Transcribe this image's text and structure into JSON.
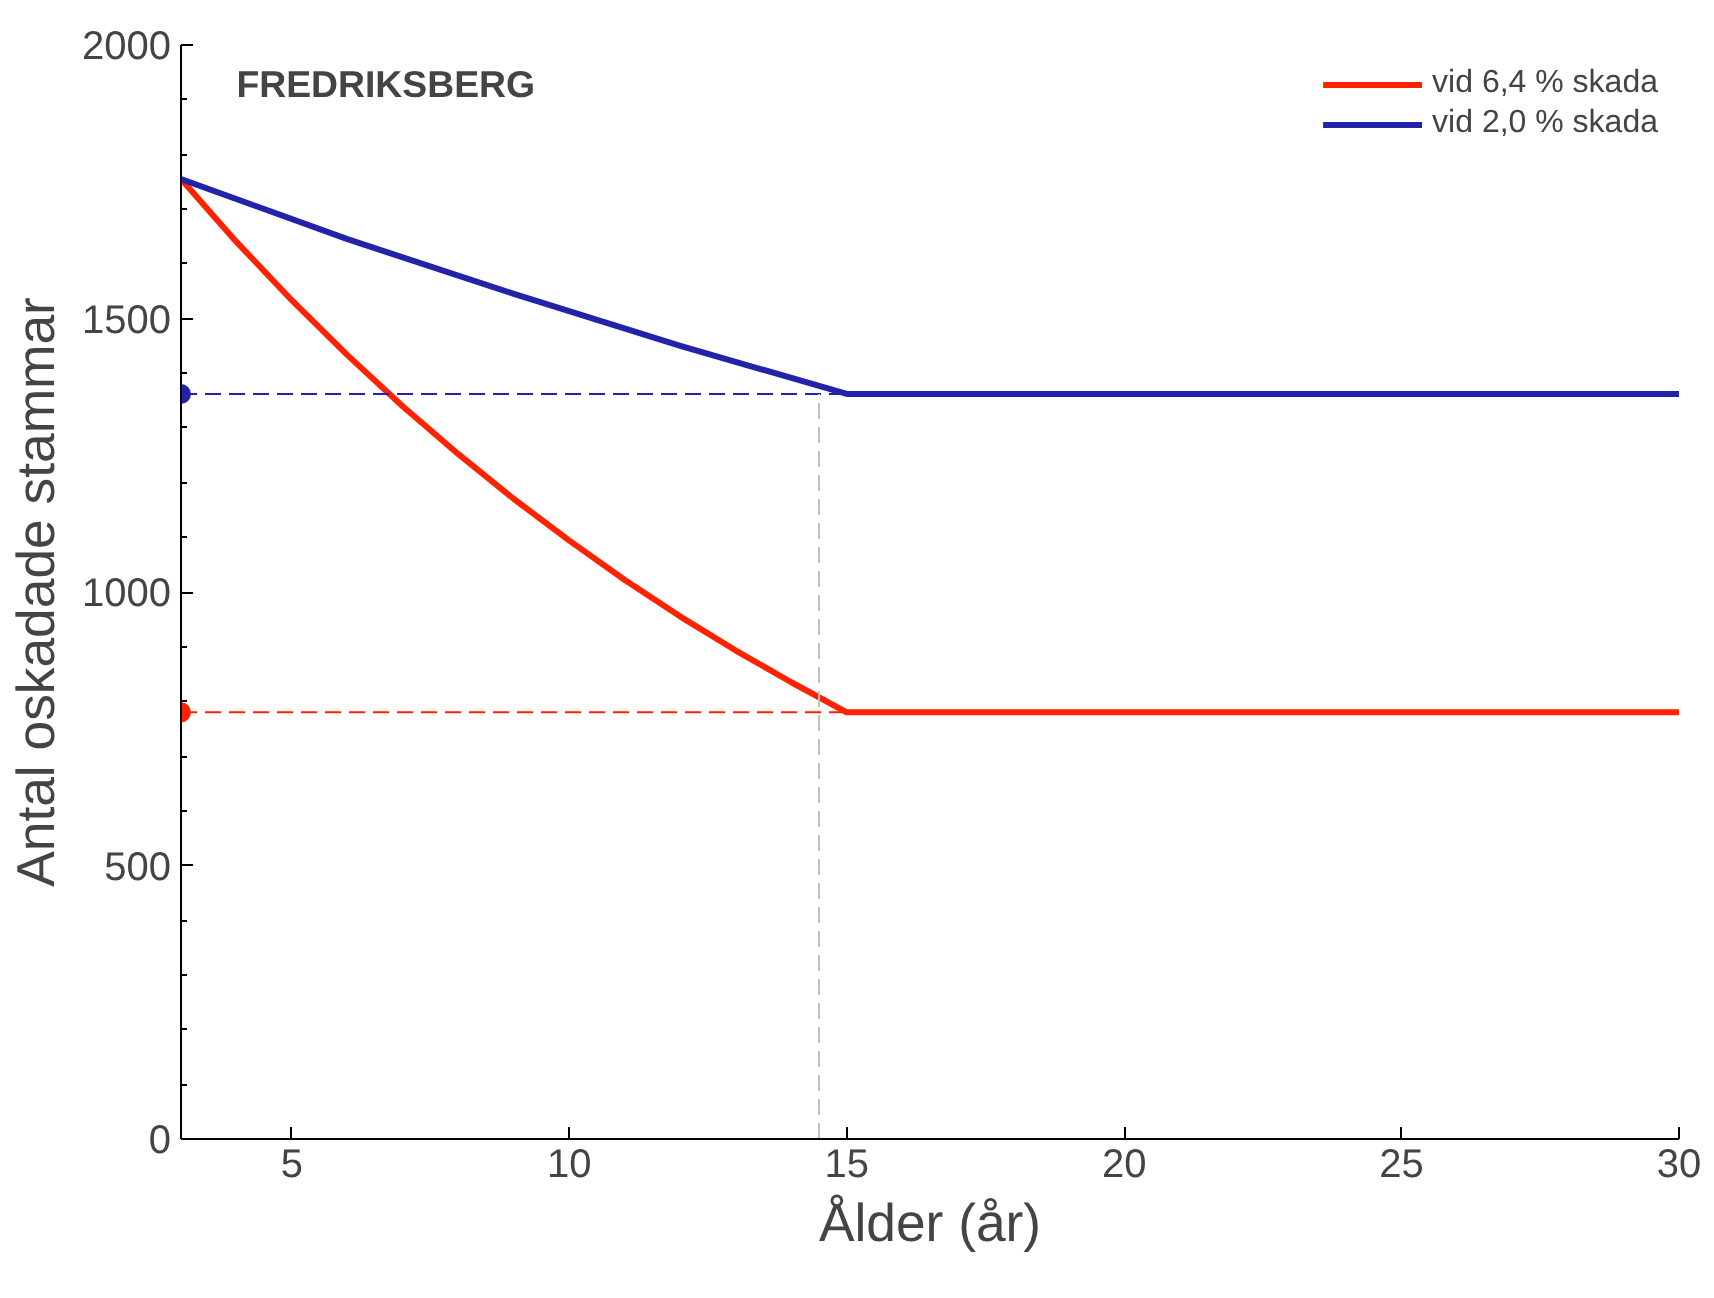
{
  "chart_data": {
    "type": "line",
    "title": "FREDRIKSBERG",
    "xlabel": "Ålder (år)",
    "ylabel": "Antal oskadade stammar",
    "xlim": [
      3,
      30
    ],
    "xticks": [
      5,
      10,
      15,
      20,
      25,
      30
    ],
    "ylim": [
      0,
      2000
    ],
    "yticks": [
      0,
      500,
      1000,
      1500,
      2000
    ],
    "grid": false,
    "legend": "top right",
    "line_style": "solid",
    "marker": "none",
    "series": [
      {
        "name": "vid 6,4 % skada",
        "color": "#ff2200",
        "x": [
          3,
          4,
          5,
          6,
          7,
          8,
          9,
          10,
          11,
          12,
          13,
          14,
          15,
          30
        ],
        "values": [
          1755,
          1640,
          1533,
          1433,
          1339,
          1252,
          1170,
          1094,
          1022,
          955,
          893,
          835,
          780,
          780
        ]
      },
      {
        "name": "vid 2,0 % skada",
        "color": "#2222aa",
        "x": [
          3,
          6,
          9,
          12,
          15,
          30
        ],
        "values": [
          1755,
          1645,
          1545,
          1450,
          1362,
          1362
        ]
      },
      {
        "color": "#2222aa",
        "line_style": "dashed",
        "x": [
          3,
          15
        ],
        "values": [
          1362,
          1362
        ]
      },
      {
        "color": "#ff2200",
        "line_style": "dashed",
        "x": [
          3,
          15
        ],
        "values": [
          780,
          780
        ]
      },
      {
        "color": "#c0c0c0",
        "line_style": "dashed",
        "x": [
          14.5,
          14.5
        ],
        "values": [
          0,
          1362
        ]
      },
      {
        "type": "scatter",
        "marker": "circle",
        "color": "#2222aa",
        "x": [
          3
        ],
        "values": [
          1362
        ]
      },
      {
        "type": "scatter",
        "marker": "circle",
        "color": "#ff2200",
        "x": [
          3
        ],
        "values": [
          780
        ]
      }
    ]
  }
}
